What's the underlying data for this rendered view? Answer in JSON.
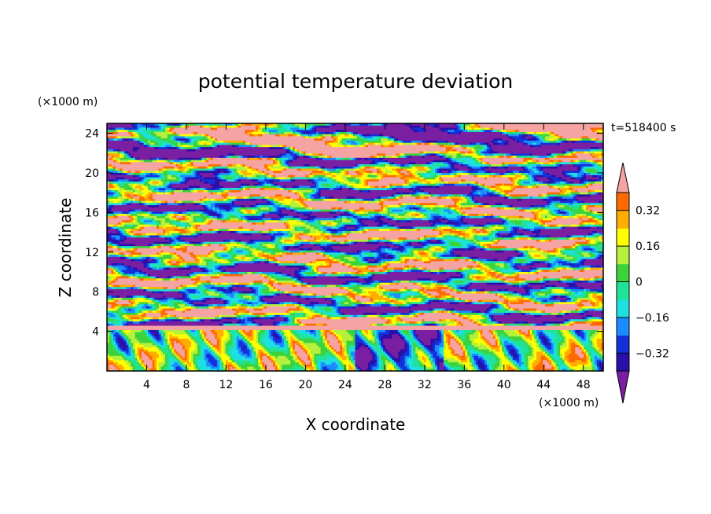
{
  "chart_data": {
    "type": "heatmap",
    "title": "potential temperature deviation",
    "xlabel": "X coordinate",
    "ylabel": "Z coordinate",
    "x_unit": "(×1000 m)",
    "y_unit": "(×1000 m)",
    "time_label": "t=518400 s",
    "xlim": [
      0,
      50
    ],
    "ylim": [
      0,
      25
    ],
    "x_ticks": [
      4,
      8,
      12,
      16,
      20,
      24,
      28,
      32,
      36,
      40,
      44,
      48
    ],
    "y_ticks": [
      4,
      8,
      12,
      16,
      20,
      24
    ],
    "colorbar": {
      "levels": [
        -0.4,
        -0.32,
        -0.24,
        -0.16,
        -0.08,
        0,
        0.08,
        0.16,
        0.24,
        0.32,
        0.4
      ],
      "tick_labels": [
        "0.32",
        "0.16",
        "0",
        "−0.16",
        "−0.32"
      ],
      "tick_values": [
        0.32,
        0.16,
        0,
        -0.16,
        -0.32
      ],
      "colors": [
        "#7a1fa2",
        "#2a0fa8",
        "#1430d8",
        "#1a8cff",
        "#1ee0e0",
        "#20e39a",
        "#3cd23c",
        "#b4f03c",
        "#ffff00",
        "#ffae00",
        "#ff6a00",
        "#f02020",
        "#f5a3a3"
      ],
      "extend": "both"
    }
  }
}
